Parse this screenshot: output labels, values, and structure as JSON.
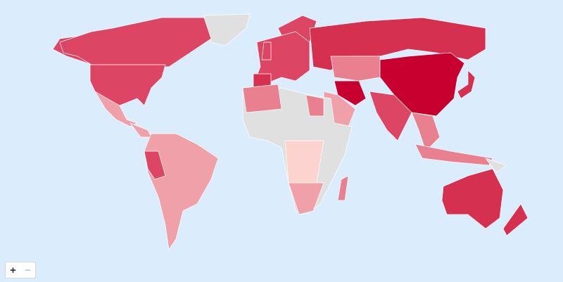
{
  "map": {
    "type": "choropleth-world",
    "colors": {
      "ocean": "#dbecfd",
      "no_data": "#e0e0e0",
      "level_1": "#fdd3d0",
      "level_2": "#f0a0a8",
      "level_3": "#e8808f",
      "level_4": "#dd4565",
      "level_5": "#d63051",
      "level_6": "#c8002f",
      "border": "#ffffff"
    }
  },
  "controls": {
    "zoom_in_label": "+",
    "zoom_out_label": "−",
    "zoom_out_disabled": true
  }
}
